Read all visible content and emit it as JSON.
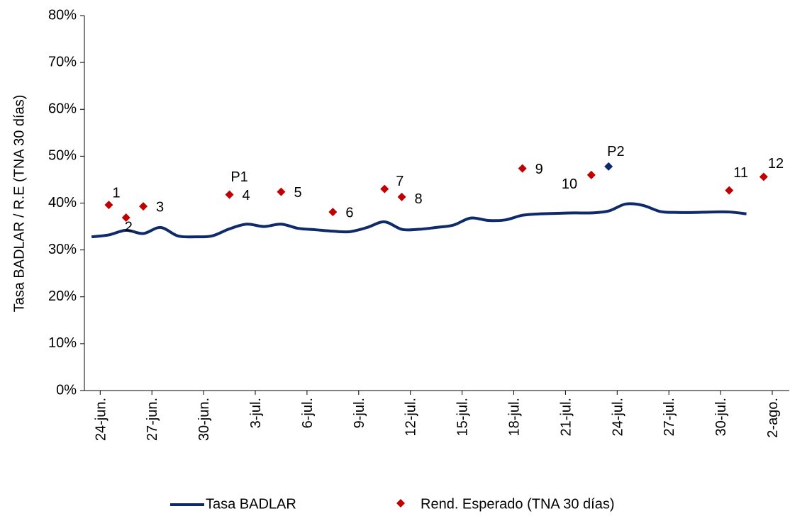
{
  "chart_data": {
    "type": "line",
    "ylabel": "Tasa BADLAR / R.E (TNA 30 días)",
    "categories": [
      null,
      "24-jun.",
      null,
      null,
      "27-jun.",
      null,
      null,
      "30-jun.",
      null,
      null,
      "3-jul.",
      null,
      null,
      "6-jul.",
      null,
      null,
      "9-jul.",
      null,
      null,
      "12-jul.",
      null,
      null,
      "15-jul.",
      null,
      null,
      "18-jul.",
      null,
      null,
      "21-jul.",
      null,
      null,
      "24-jul.",
      null,
      null,
      "27-jul.",
      null,
      null,
      "30-jul.",
      null,
      null,
      "2-ago."
    ],
    "ylim": [
      0,
      80
    ],
    "yticks": [
      {
        "value": 0,
        "label": "0%"
      },
      {
        "value": 10,
        "label": "10%"
      },
      {
        "value": 20,
        "label": "20%"
      },
      {
        "value": 30,
        "label": "30%"
      },
      {
        "value": 40,
        "label": "40%"
      },
      {
        "value": 50,
        "label": "50%"
      },
      {
        "value": 60,
        "label": "60%"
      },
      {
        "value": 70,
        "label": "70%"
      },
      {
        "value": 80,
        "label": "80%"
      }
    ],
    "grid": false,
    "series": [
      {
        "name": "Tasa BADLAR",
        "type": "line",
        "color": "#0f2a6b",
        "values": [
          32.8,
          33.2,
          34.2,
          33.5,
          34.8,
          33.0,
          32.8,
          33.0,
          34.5,
          35.5,
          35.0,
          35.5,
          34.6,
          34.3,
          34.0,
          33.9,
          34.8,
          36.0,
          34.4,
          34.4,
          34.8,
          35.3,
          36.8,
          36.3,
          36.4,
          37.4,
          37.7,
          37.8,
          37.9,
          37.9,
          38.3,
          39.8,
          39.5,
          38.2,
          38.0,
          38.0,
          38.1,
          38.1,
          37.7,
          null,
          null
        ]
      },
      {
        "name": "Rend. Esperado (TNA 30 días)",
        "type": "scatter",
        "color": "#c00000",
        "values": [
          null,
          39.6,
          36.9,
          39.3,
          null,
          null,
          null,
          null,
          41.8,
          null,
          null,
          42.4,
          null,
          null,
          38.1,
          null,
          null,
          43.0,
          41.3,
          null,
          null,
          null,
          null,
          null,
          null,
          47.4,
          null,
          null,
          null,
          46.0,
          null,
          null,
          null,
          null,
          null,
          null,
          null,
          42.7,
          null,
          45.6,
          null
        ],
        "labels": [
          null,
          "1",
          "2",
          "3",
          null,
          null,
          null,
          null,
          "4",
          null,
          null,
          "5",
          null,
          null,
          "6",
          null,
          null,
          "7",
          "8",
          null,
          null,
          null,
          null,
          null,
          null,
          "9",
          null,
          null,
          null,
          "10",
          null,
          null,
          null,
          null,
          null,
          null,
          null,
          "11",
          null,
          "12",
          null
        ]
      },
      {
        "type": "scatter",
        "color": "#0f2a6b",
        "legend": false,
        "values": [
          null,
          null,
          null,
          null,
          null,
          null,
          null,
          null,
          null,
          null,
          null,
          null,
          null,
          null,
          null,
          null,
          null,
          null,
          null,
          null,
          null,
          null,
          null,
          null,
          null,
          null,
          null,
          null,
          null,
          null,
          47.8,
          null,
          null,
          null,
          null,
          null,
          null,
          null,
          null,
          null,
          null
        ],
        "labels": [
          null,
          null,
          null,
          null,
          null,
          null,
          null,
          null,
          null,
          null,
          null,
          null,
          null,
          null,
          null,
          null,
          null,
          null,
          null,
          null,
          null,
          null,
          null,
          null,
          null,
          null,
          null,
          null,
          null,
          null,
          "P2",
          null,
          null,
          null,
          null,
          null,
          null,
          null,
          null,
          null,
          null
        ]
      }
    ],
    "annotations": [
      {
        "text": "P1",
        "series": 1,
        "index": 8
      }
    ]
  }
}
